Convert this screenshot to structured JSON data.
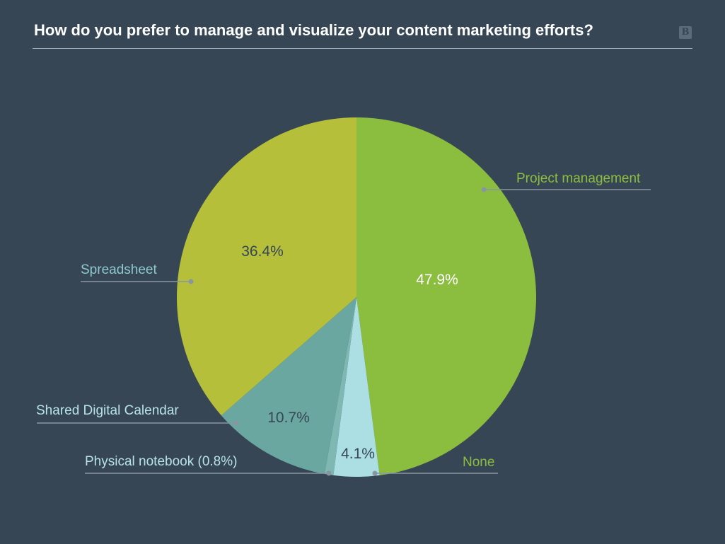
{
  "header": {
    "title": "How do you prefer to manage and visualize your content marketing efforts?",
    "logo_text": "B"
  },
  "chart_data": {
    "type": "pie",
    "title": "How do you prefer to manage and visualize your content marketing efforts?",
    "slices": [
      {
        "label": "Project management",
        "value": 47.9,
        "value_label": "47.9%",
        "color": "#8bbd3f",
        "label_color": "#8bbd3f",
        "pct_color": "#ffffff"
      },
      {
        "label": "None",
        "value": 4.1,
        "value_label": "4.1%",
        "color": "#acdfe3",
        "label_color": "#8bbd3f",
        "pct_color": "#364655"
      },
      {
        "label": "Physical notebook (0.8%)",
        "value": 0.8,
        "value_label": "",
        "color": "#7fb8b2",
        "label_color": "#b7e3e6",
        "pct_color": "#364655"
      },
      {
        "label": "Shared Digital Calendar",
        "value": 10.7,
        "value_label": "10.7%",
        "color": "#6aa7a1",
        "label_color": "#b7e3e6",
        "pct_color": "#364655"
      },
      {
        "label": "Spreadsheet",
        "value": 36.4,
        "value_label": "36.4%",
        "color": "#b5bf3a",
        "label_color": "#8fc9cc",
        "pct_color": "#364655"
      }
    ],
    "start_angle": "12 o'clock",
    "direction": "clockwise",
    "legend": "callout labels with leader lines"
  }
}
